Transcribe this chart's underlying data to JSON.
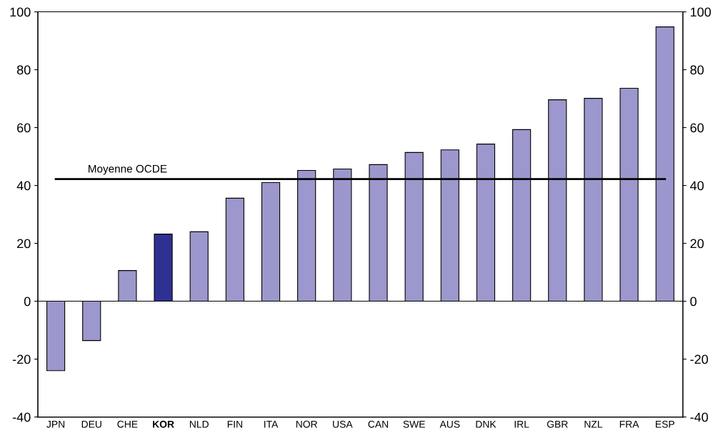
{
  "chart_data": {
    "type": "bar",
    "categories": [
      "JPN",
      "DEU",
      "CHE",
      "KOR",
      "NLD",
      "FIN",
      "ITA",
      "NOR",
      "USA",
      "CAN",
      "SWE",
      "AUS",
      "DNK",
      "IRL",
      "GBR",
      "NZL",
      "FRA",
      "ESP"
    ],
    "values": [
      -24,
      -13.6,
      10.6,
      23.2,
      24,
      35.6,
      41,
      45.2,
      45.7,
      47.2,
      51.4,
      52.3,
      54.3,
      59.3,
      69.6,
      70.1,
      73.6,
      94.8
    ],
    "colors": [
      "#9c97cc",
      "#9c97cc",
      "#9c97cc",
      "#2e3192",
      "#9c97cc",
      "#9c97cc",
      "#9c97cc",
      "#9c97cc",
      "#9c97cc",
      "#9c97cc",
      "#9c97cc",
      "#9c97cc",
      "#9c97cc",
      "#9c97cc",
      "#9c97cc",
      "#9c97cc",
      "#9c97cc",
      "#9c97cc"
    ],
    "ylim": [
      -40,
      100
    ],
    "yticks": [
      -40,
      -20,
      0,
      20,
      40,
      60,
      80,
      100
    ],
    "y2lim": [
      -40,
      100
    ],
    "y2ticks": [
      -40,
      -20,
      0,
      20,
      40,
      60,
      80,
      100
    ],
    "ref_lines": [
      {
        "axis": "y",
        "value": 42.2,
        "label": "Moyenne OCDE",
        "color": "#000000"
      }
    ],
    "legend": false
  }
}
